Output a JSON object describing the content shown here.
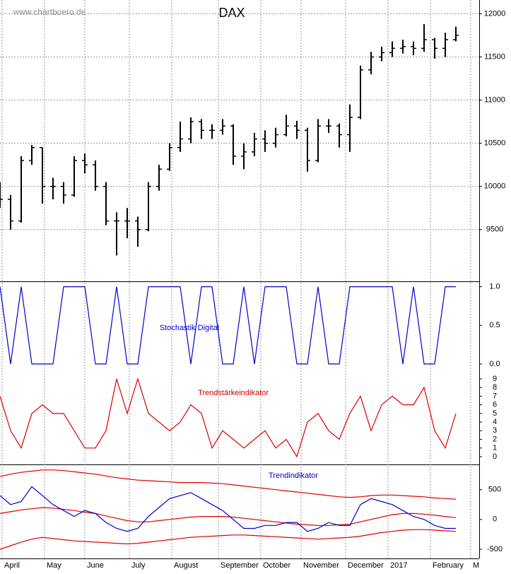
{
  "chart_data": [
    {
      "type": "ohlc",
      "title": "DAX",
      "annotation": "www.chartbuero.de",
      "x": [
        0,
        5,
        10,
        15,
        20,
        25,
        30,
        35,
        40,
        45,
        50,
        55,
        60,
        65,
        70,
        75,
        80,
        85,
        90,
        95,
        100,
        105,
        110,
        115,
        120,
        125,
        130,
        135,
        140,
        145,
        150,
        155,
        160,
        165,
        170,
        175,
        180,
        185,
        190,
        195,
        200,
        205,
        210,
        215
      ],
      "open": [
        9950,
        9850,
        9600,
        10300,
        10450,
        10000,
        10000,
        9900,
        10300,
        10250,
        10000,
        9600,
        9600,
        9600,
        9500,
        10000,
        10200,
        10450,
        10550,
        10750,
        10650,
        10650,
        10700,
        10350,
        10400,
        10550,
        10500,
        10600,
        10700,
        10650,
        10300,
        10700,
        10700,
        10600,
        10800,
        11350,
        11500,
        11550,
        11600,
        11620,
        11600,
        11700,
        11600,
        11700
      ],
      "high": [
        10050,
        9900,
        10350,
        10480,
        10450,
        10100,
        10050,
        10350,
        10380,
        10300,
        10050,
        9700,
        9750,
        9650,
        10050,
        10250,
        10500,
        10750,
        10800,
        10780,
        10720,
        10780,
        10720,
        10500,
        10620,
        10650,
        10680,
        10830,
        10760,
        10680,
        10780,
        10780,
        10730,
        10950,
        11400,
        11560,
        11620,
        11680,
        11700,
        11680,
        11880,
        11720,
        11780,
        11850
      ],
      "low": [
        9750,
        9500,
        9580,
        10250,
        9800,
        9850,
        9800,
        9880,
        10150,
        9950,
        9550,
        9200,
        9400,
        9300,
        9480,
        9950,
        10180,
        10400,
        10500,
        10550,
        10550,
        10600,
        10250,
        10200,
        10350,
        10400,
        10450,
        10580,
        10550,
        10170,
        10280,
        10620,
        10450,
        10400,
        10780,
        11300,
        11450,
        11500,
        11540,
        11520,
        11560,
        11480,
        11500,
        11680
      ],
      "close": [
        9850,
        9600,
        10300,
        10450,
        10000,
        10000,
        9900,
        10300,
        10250,
        10000,
        9600,
        9600,
        9600,
        9500,
        10000,
        10200,
        10450,
        10550,
        10750,
        10650,
        10650,
        10700,
        10350,
        10400,
        10550,
        10500,
        10600,
        10700,
        10650,
        10300,
        10700,
        10700,
        10600,
        10800,
        11350,
        11500,
        11550,
        11600,
        11620,
        11600,
        11700,
        11600,
        11700,
        11750
      ],
      "color": "#000000",
      "ylim": [
        8900,
        12160
      ],
      "yticks": [
        9500,
        10000,
        10500,
        11000,
        11500,
        12000
      ],
      "grid": true
    },
    {
      "type": "step",
      "title": "Stochastik Digital",
      "title_color": "#0000cc",
      "x": [
        0,
        5,
        10,
        15,
        20,
        25,
        30,
        35,
        40,
        45,
        50,
        55,
        60,
        65,
        70,
        75,
        80,
        85,
        90,
        95,
        100,
        105,
        110,
        115,
        120,
        125,
        130,
        135,
        140,
        145,
        150,
        155,
        160,
        165,
        170,
        175,
        180,
        185,
        190,
        195,
        200,
        205,
        210,
        215
      ],
      "series": [
        {
          "color": "#0000cc",
          "values": [
            1,
            0,
            1,
            0,
            0,
            0,
            1,
            1,
            1,
            0,
            0,
            1,
            0,
            0,
            1,
            1,
            1,
            1,
            0,
            1,
            1,
            0,
            0,
            1,
            0,
            1,
            1,
            1,
            0,
            0,
            1,
            0,
            0,
            1,
            1,
            1,
            1,
            1,
            0,
            1,
            0,
            0,
            1,
            1
          ]
        }
      ],
      "ylim": [
        -0.12,
        1.07
      ],
      "yticks": [
        {
          "value": 0,
          "label": "0.0"
        },
        {
          "value": 0.5,
          "label": "0.5"
        },
        {
          "value": 1,
          "label": "1.0"
        }
      ]
    },
    {
      "type": "line",
      "title": "Trendstärkeindikator",
      "title_color": "#cc0000",
      "x": [
        0,
        5,
        10,
        15,
        20,
        25,
        30,
        35,
        40,
        45,
        50,
        55,
        60,
        65,
        70,
        75,
        80,
        85,
        90,
        95,
        100,
        105,
        110,
        115,
        120,
        125,
        130,
        135,
        140,
        145,
        150,
        155,
        160,
        165,
        170,
        175,
        180,
        185,
        190,
        195,
        200,
        205,
        210,
        215
      ],
      "series": [
        {
          "color": "#dd0000",
          "values": [
            7,
            3,
            1,
            5,
            6,
            5,
            5,
            3,
            1,
            1,
            3,
            9,
            5,
            9,
            5,
            4,
            3,
            4,
            6,
            5,
            1,
            3,
            2,
            1,
            2,
            3,
            1,
            2,
            0,
            4,
            5,
            3,
            2,
            5,
            7,
            3,
            6,
            7,
            6,
            6,
            8,
            3,
            1,
            5
          ]
        }
      ],
      "ylim": [
        -0.9,
        9.65
      ],
      "yticks": [
        0,
        1,
        2,
        3,
        4,
        5,
        6,
        7,
        8,
        9
      ]
    },
    {
      "type": "line",
      "title": "Trendindikator",
      "title_color": "#0000cc",
      "x": [
        0,
        5,
        10,
        15,
        20,
        25,
        30,
        35,
        40,
        45,
        50,
        55,
        60,
        65,
        70,
        75,
        80,
        85,
        90,
        95,
        100,
        105,
        110,
        115,
        120,
        125,
        130,
        135,
        140,
        145,
        150,
        155,
        160,
        165,
        170,
        175,
        180,
        185,
        190,
        195,
        200,
        205,
        210,
        215
      ],
      "series": [
        {
          "color": "#dd0000",
          "values": [
            720,
            760,
            790,
            810,
            830,
            830,
            820,
            800,
            780,
            760,
            730,
            700,
            680,
            660,
            650,
            640,
            630,
            620,
            620,
            620,
            610,
            600,
            580,
            560,
            540,
            520,
            500,
            480,
            460,
            440,
            420,
            400,
            380,
            370,
            380,
            400,
            410,
            410,
            400,
            390,
            380,
            360,
            350,
            340
          ]
        },
        {
          "color": "#dd0000",
          "values": [
            100,
            130,
            160,
            180,
            200,
            190,
            170,
            150,
            120,
            100,
            60,
            20,
            -20,
            -40,
            -40,
            -20,
            0,
            20,
            40,
            50,
            50,
            50,
            40,
            20,
            0,
            -20,
            -40,
            -60,
            -80,
            -90,
            -100,
            -100,
            -90,
            -80,
            -40,
            0,
            40,
            80,
            100,
            100,
            90,
            70,
            50,
            30
          ]
        },
        {
          "color": "#dd0000",
          "values": [
            -500,
            -440,
            -380,
            -330,
            -300,
            -320,
            -340,
            -360,
            -370,
            -380,
            -390,
            -400,
            -410,
            -400,
            -380,
            -360,
            -340,
            -320,
            -300,
            -290,
            -280,
            -270,
            -260,
            -260,
            -270,
            -280,
            -290,
            -300,
            -310,
            -320,
            -330,
            -320,
            -310,
            -300,
            -280,
            -250,
            -220,
            -200,
            -180,
            -170,
            -170,
            -180,
            -190,
            -200
          ]
        },
        {
          "color": "#0000cc",
          "values": [
            400,
            250,
            300,
            550,
            400,
            250,
            150,
            50,
            150,
            100,
            -50,
            -150,
            -200,
            -150,
            50,
            200,
            350,
            400,
            450,
            350,
            250,
            150,
            0,
            -150,
            -150,
            -100,
            -100,
            -50,
            -50,
            -200,
            -150,
            -50,
            -100,
            -100,
            250,
            350,
            300,
            250,
            150,
            50,
            0,
            -100,
            -150,
            -150
          ]
        }
      ],
      "ylim": [
        -654,
        923
      ],
      "yticks": [
        -500,
        0,
        500
      ],
      "xlim": [
        0,
        226
      ],
      "xticks": [
        {
          "value": 1,
          "label": "April"
        },
        {
          "value": 21,
          "label": "May"
        },
        {
          "value": 40,
          "label": "June"
        },
        {
          "value": 61,
          "label": "July"
        },
        {
          "value": 81,
          "label": "August"
        },
        {
          "value": 103,
          "label": "September"
        },
        {
          "value": 123,
          "label": "October"
        },
        {
          "value": 142,
          "label": "November"
        },
        {
          "value": 163,
          "label": "December"
        },
        {
          "value": 183,
          "label": "2017"
        },
        {
          "value": 203,
          "label": "February"
        },
        {
          "value": 222,
          "label": "M"
        }
      ]
    }
  ]
}
